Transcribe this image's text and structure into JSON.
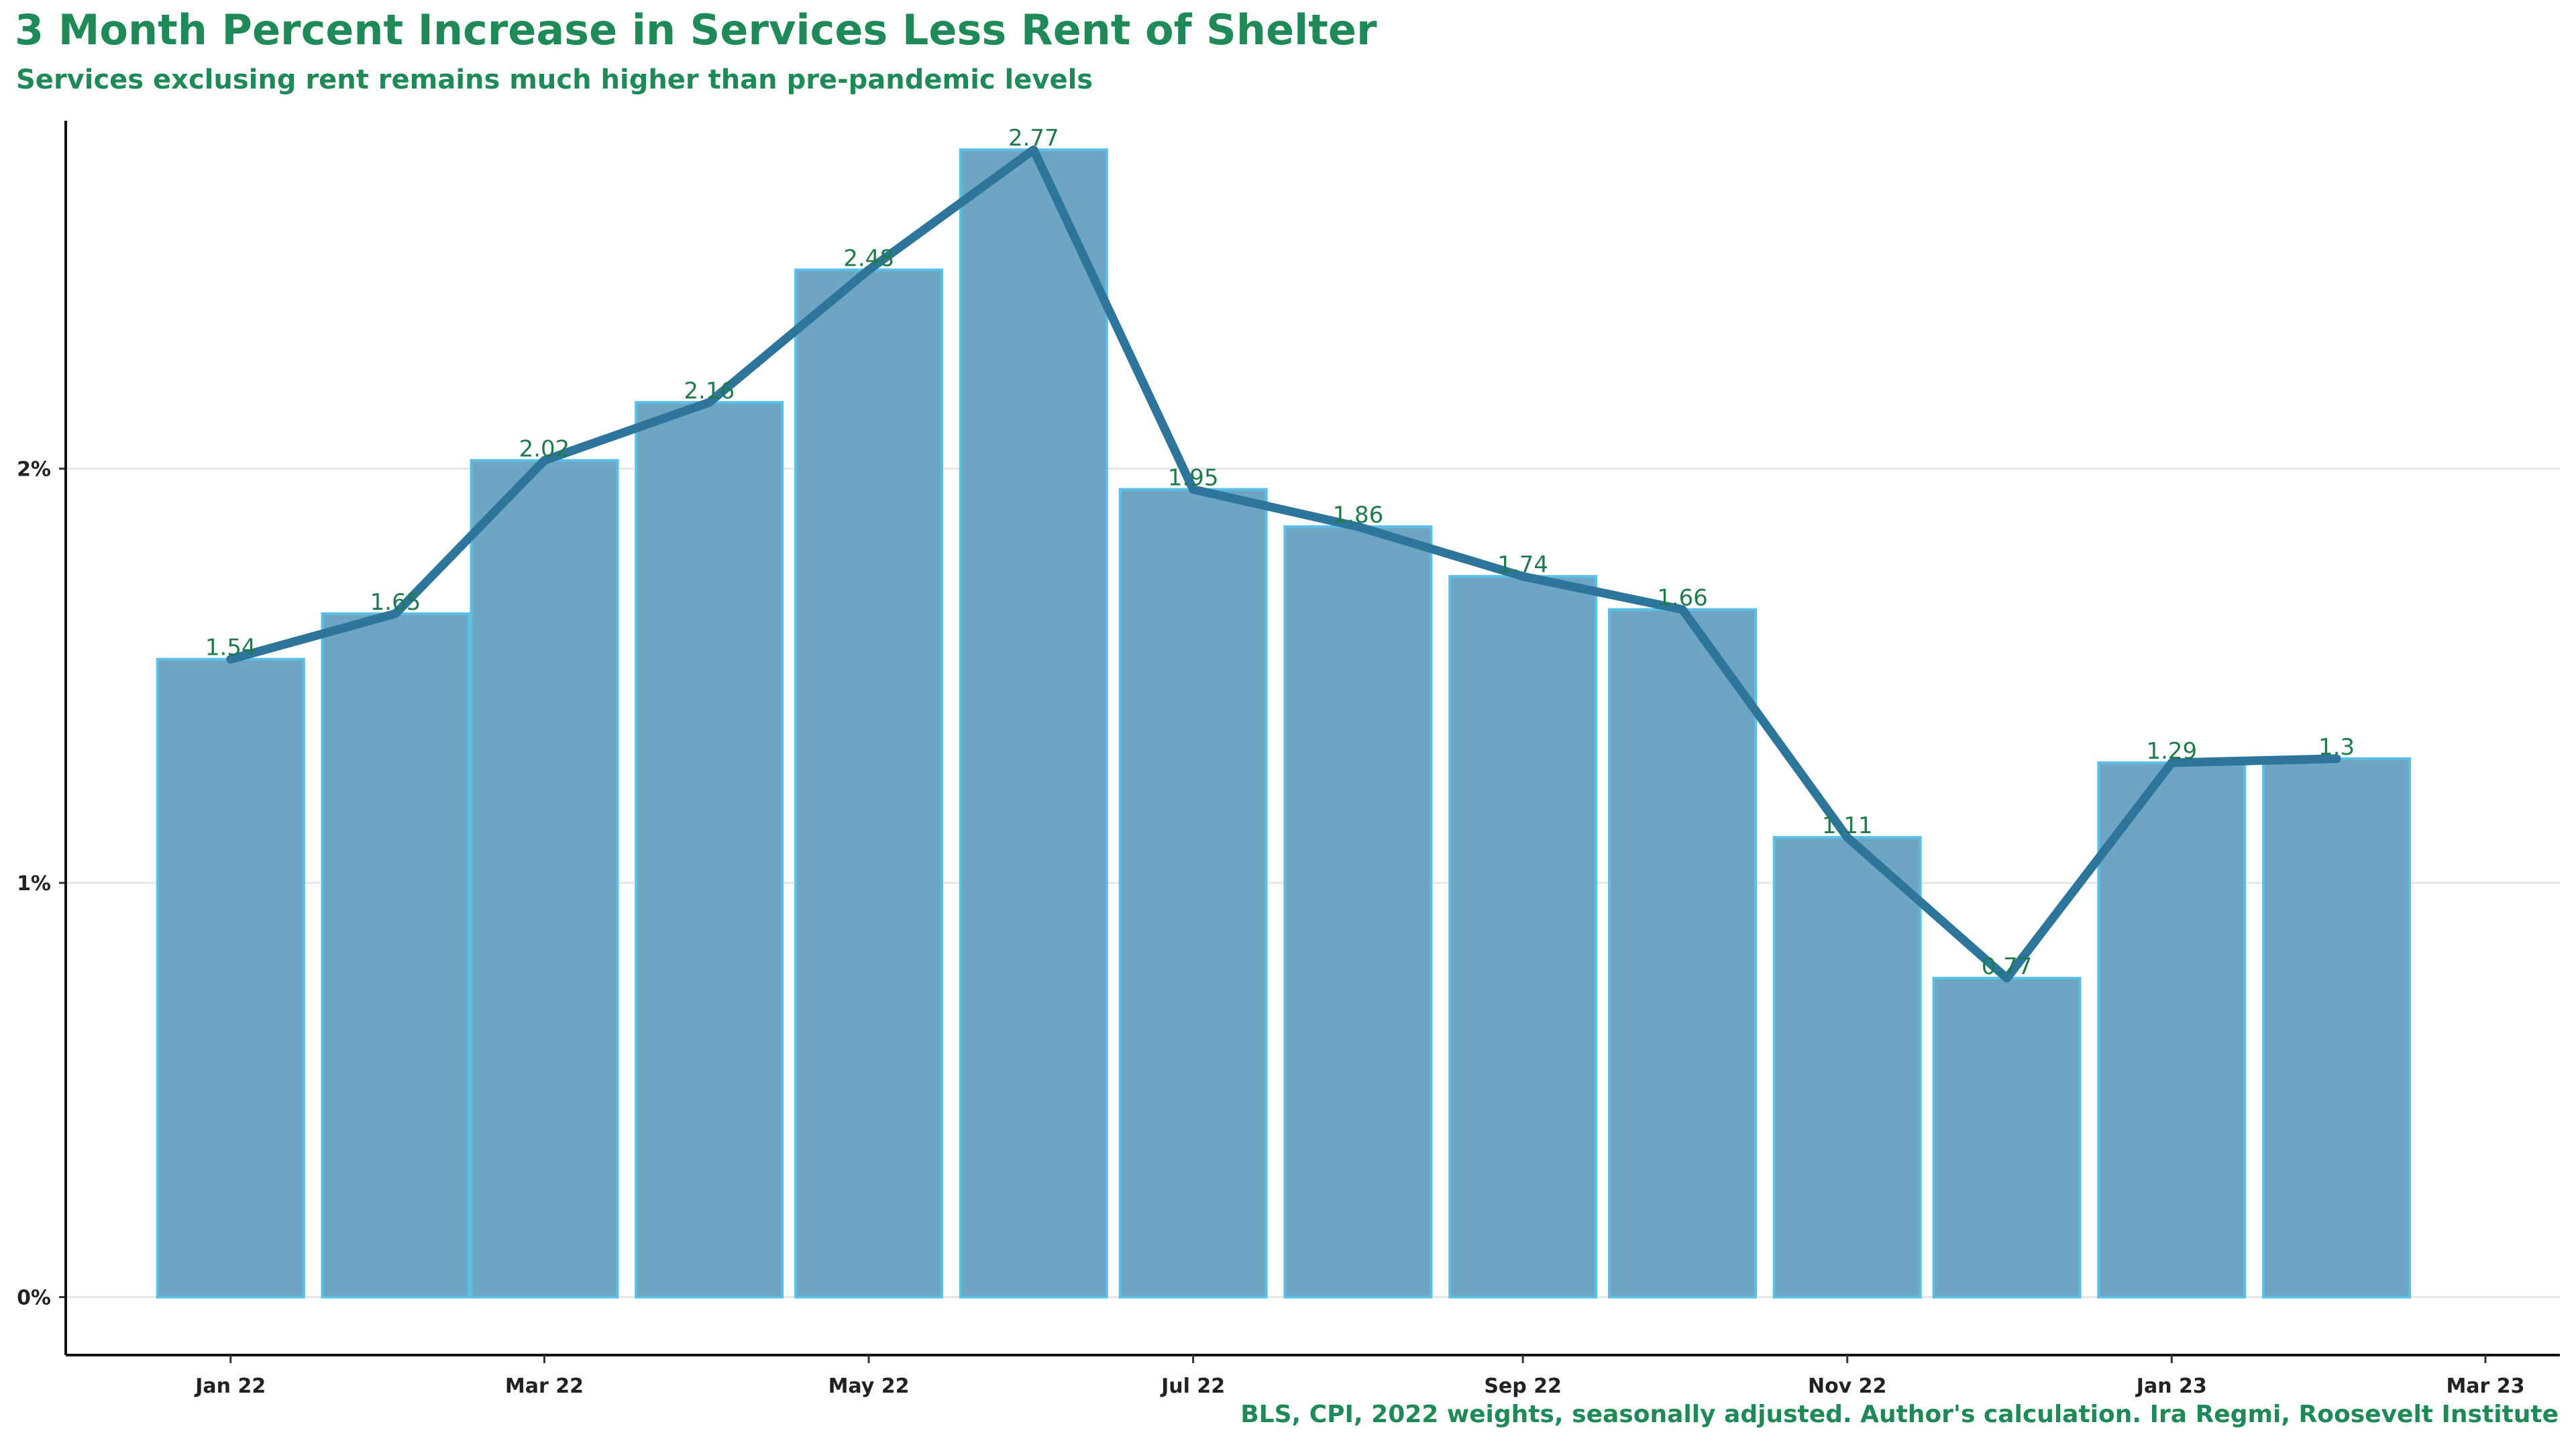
{
  "header": {
    "title": "3 Month Percent Increase in Services Less Rent of Shelter",
    "subtitle": "Services exclusing rent remains much higher than pre-pandemic levels"
  },
  "footer": {
    "caption": "BLS, CPI, 2022 weights, seasonally adjusted. Author's calculation. Ira Regmi, Roosevelt Institute"
  },
  "colors": {
    "accent_text": "#1f8a57",
    "bar_fill": "#6ea5c3",
    "bar_stroke": "#5bc0e8",
    "line": "#2e759b",
    "grid": "#e6e6e6"
  },
  "chart_data": {
    "type": "bar",
    "title": "3 Month Percent Increase in Services Less Rent of Shelter",
    "subtitle": "Services exclusing rent remains much higher than pre-pandemic levels",
    "xlabel": "",
    "ylabel": "",
    "ylim": [
      -0.14,
      2.84
    ],
    "xlim": [
      "2021-12-01",
      "2023-03-15"
    ],
    "x_ticks": [
      {
        "date": "2022-01-01",
        "label": "Jan 22"
      },
      {
        "date": "2022-03-01",
        "label": "Mar 22"
      },
      {
        "date": "2022-05-01",
        "label": "May 22"
      },
      {
        "date": "2022-07-01",
        "label": "Jul 22"
      },
      {
        "date": "2022-09-01",
        "label": "Sep 22"
      },
      {
        "date": "2022-11-01",
        "label": "Nov 22"
      },
      {
        "date": "2023-01-01",
        "label": "Jan 23"
      },
      {
        "date": "2023-03-01",
        "label": "Mar 23"
      }
    ],
    "y_ticks": [
      {
        "value": 0,
        "label": "0%"
      },
      {
        "value": 1,
        "label": "1%"
      },
      {
        "value": 2,
        "label": "2%"
      }
    ],
    "grid": true,
    "legend": "none",
    "dates": [
      "2022-01-01",
      "2022-02-01",
      "2022-03-01",
      "2022-04-01",
      "2022-05-01",
      "2022-06-01",
      "2022-07-01",
      "2022-08-01",
      "2022-09-01",
      "2022-10-01",
      "2022-11-01",
      "2022-12-01",
      "2023-01-01",
      "2023-02-01"
    ],
    "values": [
      1.54,
      1.65,
      2.02,
      2.16,
      2.48,
      2.77,
      1.95,
      1.86,
      1.74,
      1.66,
      1.11,
      0.77,
      1.29,
      1.3
    ],
    "data_labels": [
      "1.54",
      "1.65",
      "2.02",
      "2.16",
      "2.48",
      "2.77",
      "1.95",
      "1.86",
      "1.74",
      "1.66",
      "1.11",
      "0.77",
      "1.29",
      "1.3"
    ],
    "line_overlay": true
  }
}
